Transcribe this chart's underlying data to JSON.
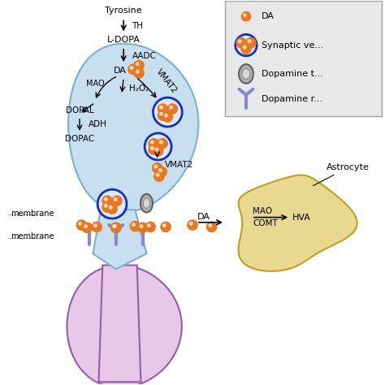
{
  "bg_color": "#ffffff",
  "neuron_color": "#c8dff0",
  "neuron_border": "#7ab0d0",
  "postsynaptic_color": "#e8c8e8",
  "postsynaptic_border": "#9060a0",
  "astrocyte_color": "#e8d890",
  "astrocyte_border": "#c0a020",
  "da_dot_color": "#e87820",
  "vesicle_border": "#1030c0",
  "vesicle_fill": "#dce8f8",
  "transporter_color": "#909090",
  "receptor_color": "#8888cc",
  "legend_bg": "#e8e8e8",
  "legend_border": "#a0a0a0",
  "text_color": "#000000",
  "arrow_color": "#000000",
  "labels": {
    "tyrosine": "Tyrosine",
    "TH": "TH",
    "LDOPA": "L-DOPA",
    "AADC": "AADC",
    "DA": "DA",
    "VMAT2_up": "VMAT2",
    "VMAT2_dn": "VMAT2",
    "MAO": "MAO",
    "H2O2": "H₂O₂",
    "DOPAL": "DOPAL",
    "ADH": "ADH",
    "DOPAC": "DOPAC",
    "membrane_top": "membrane",
    "membrane_bot": "membrane",
    "DA_syn": "DA",
    "MAO_label": "MAO",
    "COMT": "COMT",
    "HVA": "HVA",
    "Astrocyte": "Astrocyte",
    "legend_DA": "DA",
    "legend_vesicle": "Synaptic ve...",
    "legend_transporter": "Dopamine t...",
    "legend_receptor": "Dopamine r..."
  }
}
